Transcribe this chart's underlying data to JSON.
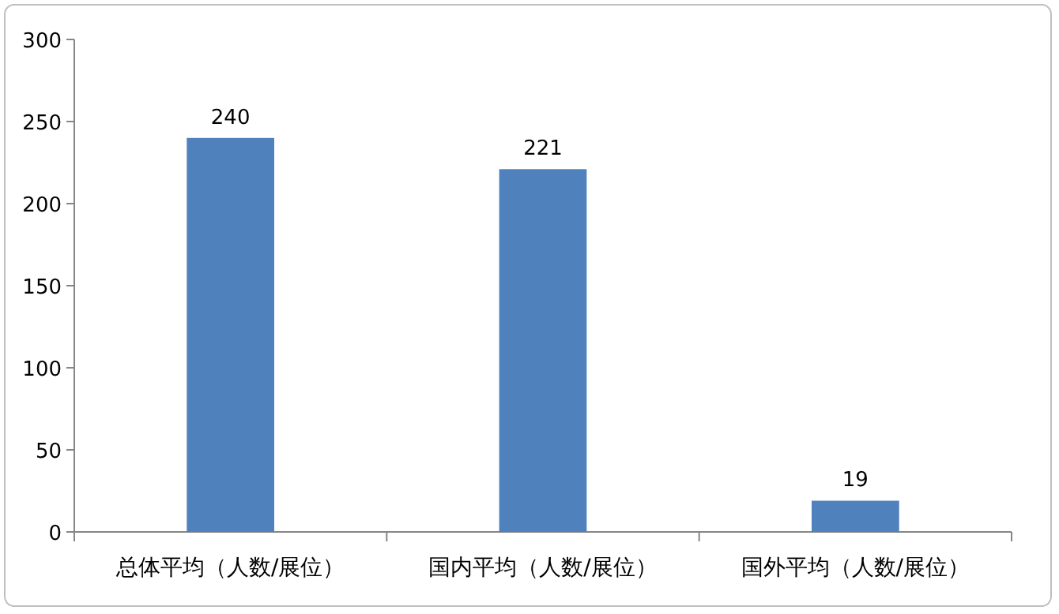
{
  "chart_data": {
    "type": "bar",
    "categories": [
      "总体平均（人数/展位）",
      "国内平均（人数/展位）",
      "国外平均（人数/展位）"
    ],
    "values": [
      240,
      221,
      19
    ],
    "color": "#4f81bd",
    "ylim": [
      0,
      300
    ],
    "yticks": [
      0,
      50,
      100,
      150,
      200,
      250,
      300
    ],
    "data_labels": true
  }
}
